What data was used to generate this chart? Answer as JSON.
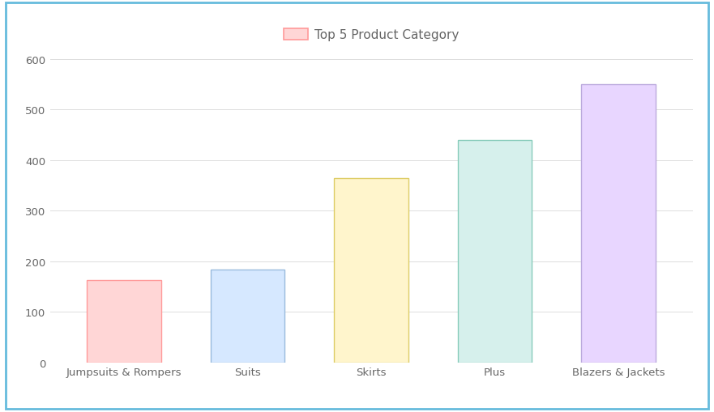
{
  "categories": [
    "Jumpsuits & Rompers",
    "Suits",
    "Skirts",
    "Plus",
    "Blazers & Jackets"
  ],
  "values": [
    163,
    183,
    365,
    440,
    550
  ],
  "bar_face_colors": [
    "#FFD6D6",
    "#D6E8FF",
    "#FFF5CC",
    "#D6F0EC",
    "#E8D6FF"
  ],
  "bar_edge_colors": [
    "#FF9999",
    "#99BBDD",
    "#DDCC66",
    "#88CCBB",
    "#BBAADD"
  ],
  "title": "Top 5 Product Category",
  "ylim": [
    0,
    620
  ],
  "yticks": [
    0,
    100,
    200,
    300,
    400,
    500,
    600
  ],
  "legend_face_color": "#FFD6D6",
  "legend_edge_color": "#FF9999",
  "background_color": "#FFFFFF",
  "outer_border_color": "#66BBDD",
  "grid_color": "#DDDDDD",
  "tick_label_color": "#666666",
  "title_color": "#666666",
  "title_fontsize": 11,
  "tick_fontsize": 9.5
}
